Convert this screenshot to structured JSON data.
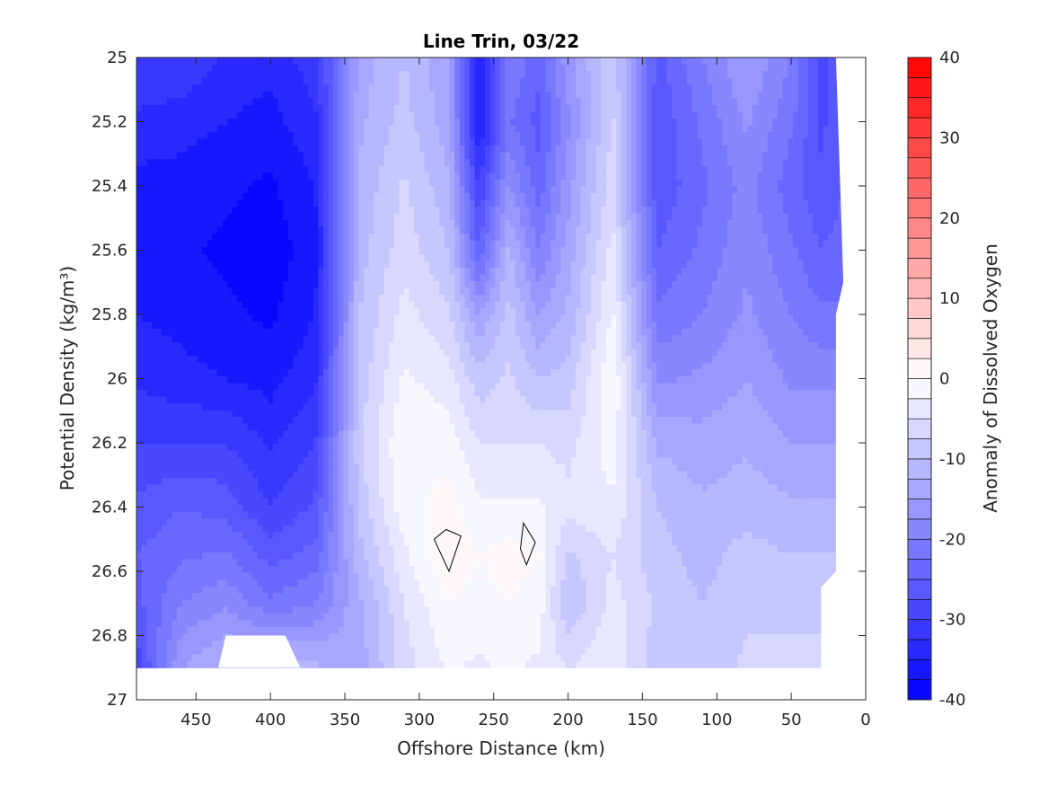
{
  "chart_data": {
    "type": "heatmap",
    "subtype": "filled-contour",
    "title": "Line Trin, 03/22",
    "xlabel": "Offshore Distance (km)",
    "ylabel": "Potential Density (kg/m³)",
    "colorbar_label": "Anomaly of Dissolved Oxygen",
    "xlim": [
      490,
      0
    ],
    "x_reversed": true,
    "ylim": [
      25,
      27
    ],
    "y_reversed": true,
    "x_ticks": [
      450,
      400,
      350,
      300,
      250,
      200,
      150,
      100,
      50,
      0
    ],
    "y_ticks": [
      25,
      25.2,
      25.4,
      25.6,
      25.8,
      26,
      26.2,
      26.4,
      26.6,
      26.8,
      27
    ],
    "y_tick_labels": [
      "25",
      "25.2",
      "25.4",
      "25.6",
      "25.8",
      "26",
      "26.2",
      "26.4",
      "26.6",
      "26.8",
      "27"
    ],
    "clim": [
      -40,
      40
    ],
    "colorbar_ticks": [
      -40,
      -30,
      -20,
      -10,
      0,
      10,
      20,
      30,
      40
    ],
    "colorbar_step": 2.5,
    "colormap": {
      "negative_end": "#0000ff",
      "zero": "#ffffff",
      "positive_end": "#ff0000"
    },
    "data_extent": {
      "x_max": 490,
      "x_min": 15,
      "y_max": 26.9
    },
    "grid_x": [
      490,
      460,
      430,
      400,
      370,
      340,
      310,
      280,
      260,
      240,
      220,
      200,
      170,
      140,
      110,
      80,
      50,
      30,
      15
    ],
    "grid_y": [
      25.0,
      25.2,
      25.4,
      25.6,
      25.8,
      26.0,
      26.2,
      26.4,
      26.55,
      26.7,
      26.9
    ],
    "values": [
      [
        -30,
        -33,
        -36,
        -37,
        -35,
        -33,
        -30,
        -27,
        -25,
        -26,
        -29
      ],
      [
        -30,
        -34,
        -36,
        -37,
        -36,
        -34,
        -30,
        -25,
        -23,
        -20,
        -15
      ],
      [
        -33,
        -35,
        -37,
        -38,
        -37,
        -35,
        -30,
        -26,
        -22,
        -18,
        -12
      ],
      [
        -34,
        -36,
        -38,
        -39,
        -38,
        -36,
        -33,
        -30,
        -26,
        -22,
        -10
      ],
      [
        -31,
        -33,
        -35,
        -36,
        -35,
        -33,
        -30,
        -27,
        -24,
        -20,
        -12
      ],
      [
        -14,
        -13,
        -12,
        -11,
        -10,
        -9,
        -8,
        -9,
        -11,
        -13,
        -14
      ],
      [
        -10,
        -9,
        -7,
        -6,
        -4,
        -2,
        0,
        -1,
        -3,
        -5,
        -6
      ],
      [
        -15,
        -14,
        -12,
        -10,
        -7,
        -4,
        -1,
        1,
        2,
        0,
        -2
      ],
      [
        -35,
        -36,
        -30,
        -25,
        -15,
        -9,
        -5,
        -2,
        0,
        -1,
        -3
      ],
      [
        -20,
        -22,
        -17,
        -12,
        -9,
        -7,
        -5,
        -2,
        1,
        0,
        -2
      ],
      [
        -24,
        -26,
        -24,
        -20,
        -15,
        -10,
        -5,
        -2,
        0,
        -1,
        -3
      ],
      [
        -16,
        -18,
        -16,
        -14,
        -12,
        -9,
        -6,
        -4,
        -8,
        -10,
        -5
      ],
      [
        -8,
        -7,
        -6,
        -4,
        -2,
        0,
        -1,
        -3,
        -5,
        -4,
        -3
      ],
      [
        -26,
        -27,
        -27,
        -25,
        -22,
        -18,
        -13,
        -10,
        -9,
        -8,
        -9
      ],
      [
        -20,
        -22,
        -23,
        -22,
        -20,
        -17,
        -14,
        -12,
        -11,
        -10,
        -9
      ],
      [
        -15,
        -17,
        -19,
        -18,
        -17,
        -15,
        -13,
        -11,
        -9,
        -8,
        -7
      ],
      [
        -20,
        -22,
        -24,
        -22,
        -20,
        -18,
        -15,
        -12,
        -10,
        -8,
        -7
      ],
      [
        -28,
        -28,
        -27,
        -25,
        -22,
        -18,
        -15,
        -12,
        -10,
        -8,
        -7
      ],
      [
        -26,
        -26,
        -25,
        -24,
        -22,
        -18,
        -15,
        -12,
        -10,
        -8,
        -7
      ]
    ],
    "zero_contours": [
      {
        "points": [
          [
            290,
            26.5
          ],
          [
            282,
            26.47
          ],
          [
            272,
            26.49
          ],
          [
            280,
            26.6
          ],
          [
            290,
            26.5
          ]
        ]
      },
      {
        "points": [
          [
            232,
            26.53
          ],
          [
            230,
            26.45
          ],
          [
            222,
            26.51
          ],
          [
            228,
            26.58
          ],
          [
            232,
            26.53
          ]
        ]
      }
    ],
    "grid": false,
    "legend": "none"
  }
}
